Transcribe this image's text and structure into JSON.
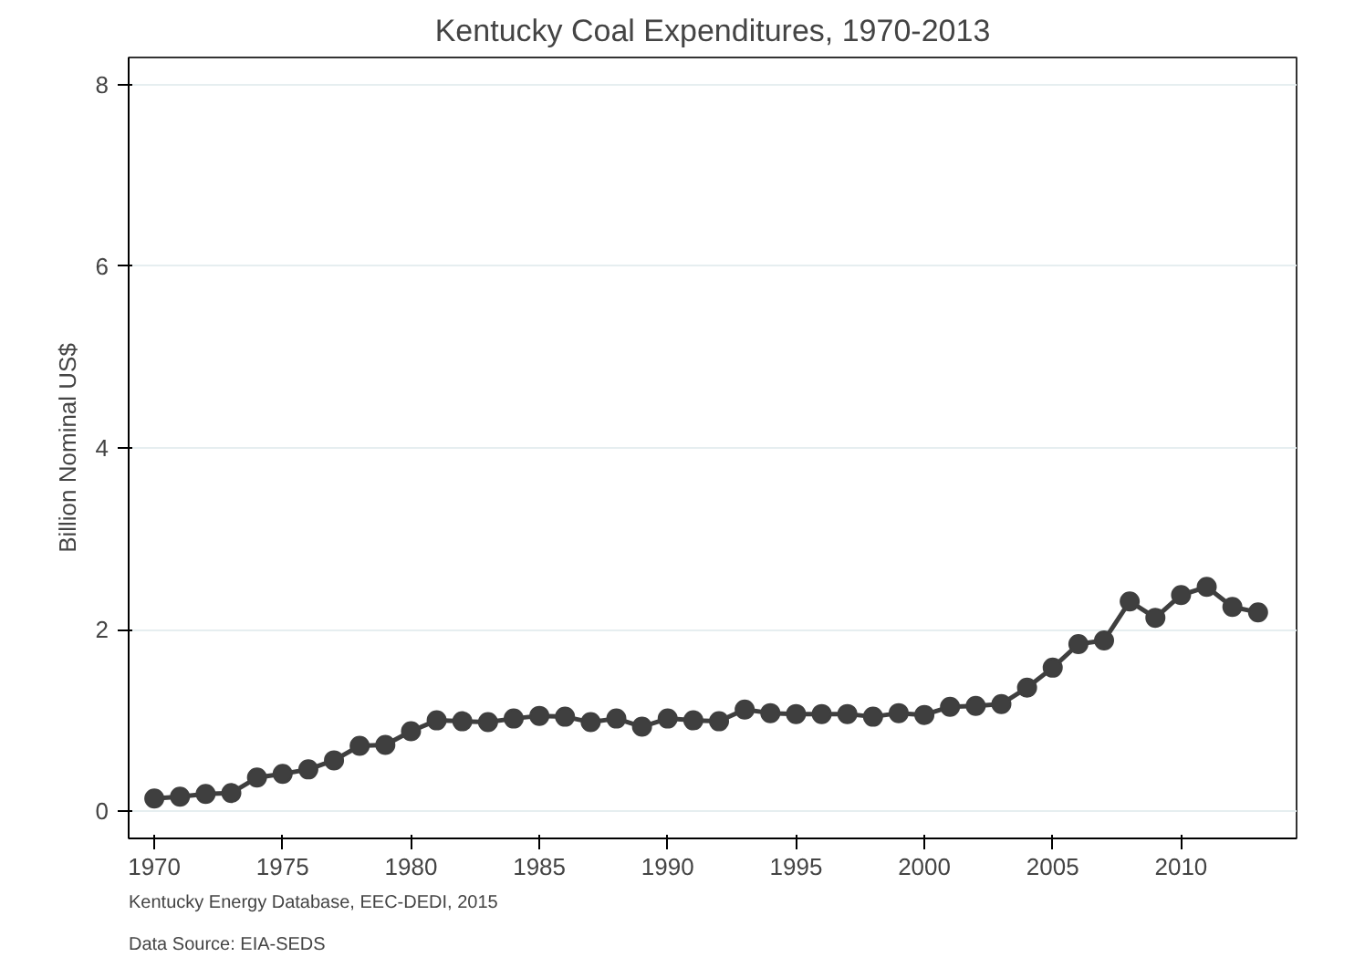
{
  "chart_data": {
    "type": "line",
    "title": "Kentucky Coal Expenditures, 1970-2013",
    "ylabel": "Billion Nominal US$",
    "x": [
      1970,
      1971,
      1972,
      1973,
      1974,
      1975,
      1976,
      1977,
      1978,
      1979,
      1980,
      1981,
      1982,
      1983,
      1984,
      1985,
      1986,
      1987,
      1988,
      1989,
      1990,
      1991,
      1992,
      1993,
      1994,
      1995,
      1996,
      1997,
      1998,
      1999,
      2000,
      2001,
      2002,
      2003,
      2004,
      2005,
      2006,
      2007,
      2008,
      2009,
      2010,
      2011,
      2012,
      2013
    ],
    "series": [
      {
        "color": "#3f3f3f",
        "values": [
          0.14,
          0.16,
          0.19,
          0.2,
          0.37,
          0.41,
          0.46,
          0.56,
          0.72,
          0.73,
          0.88,
          1.0,
          0.99,
          0.98,
          1.02,
          1.05,
          1.04,
          0.98,
          1.02,
          0.93,
          1.02,
          1.0,
          0.99,
          1.12,
          1.08,
          1.07,
          1.07,
          1.07,
          1.04,
          1.08,
          1.06,
          1.15,
          1.16,
          1.18,
          1.36,
          1.58,
          1.84,
          1.88,
          2.31,
          2.13,
          2.38,
          2.47,
          2.25,
          2.19
        ]
      }
    ],
    "xlim": [
      1969,
      2014.5
    ],
    "ylim": [
      -0.3,
      8.3
    ],
    "xticks": [
      1970,
      1975,
      1980,
      1985,
      1990,
      1995,
      2000,
      2005,
      2010
    ],
    "yticks": [
      0,
      2,
      4,
      6,
      8
    ],
    "grid": "y",
    "marker": "circle",
    "line_style": "solid",
    "annotations": [
      "Kentucky Energy Database, EEC-DEDI, 2015",
      "Data Source: EIA-SEDS"
    ]
  }
}
